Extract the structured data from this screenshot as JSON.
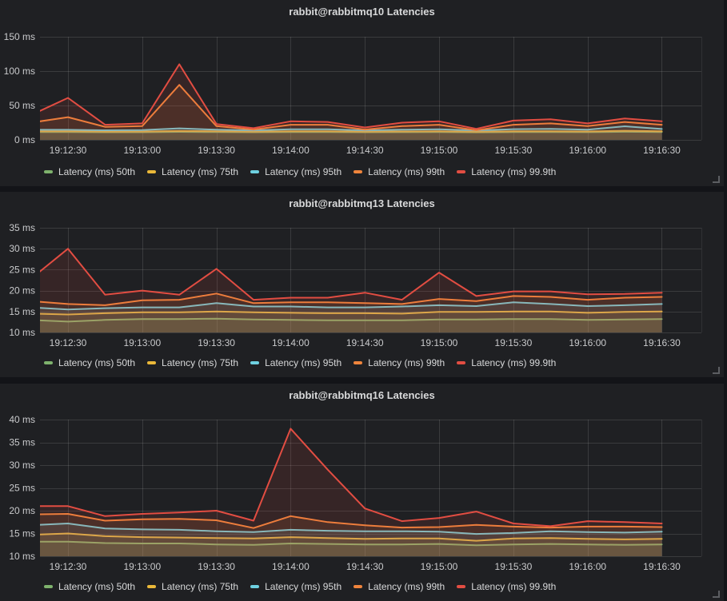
{
  "theme": {
    "page_bg": "#131418",
    "panel_bg": "#1f2023",
    "grid_color": "rgba(255,255,255,0.12)",
    "axis_text_color": "#c9cacc",
    "title_color": "#d8d9da",
    "legend_text_color": "#d8d9da",
    "resize_handle_color": "#5c5e62"
  },
  "chart_data": [
    {
      "type": "area",
      "title": "rabbit@rabbitmq10 Latencies",
      "y_unit": "ms",
      "grid": true,
      "legend_position": "bottom-left",
      "x_tick_labels": [
        "19:12:30",
        "19:13:00",
        "19:13:30",
        "19:14:00",
        "19:14:30",
        "19:15:00",
        "19:15:30",
        "19:16:00",
        "19:16:30"
      ],
      "x_tick_seconds": [
        30,
        60,
        90,
        120,
        150,
        180,
        210,
        240,
        270
      ],
      "x_seconds": [
        15,
        30,
        45,
        60,
        75,
        90,
        105,
        120,
        135,
        150,
        165,
        180,
        195,
        210,
        225,
        240,
        255,
        270
      ],
      "x_domain_seconds": [
        18.7,
        286
      ],
      "ylim": [
        0,
        150
      ],
      "y_tick_values": [
        0,
        50,
        100,
        150
      ],
      "y_tick_labels": [
        "0 ms",
        "50 ms",
        "100 ms",
        "150 ms"
      ],
      "series": [
        {
          "name": "Latency (ms) 50th",
          "percentile": "50th",
          "color": "#7EB26D",
          "values": [
            11.3,
            11.3,
            11.0,
            11.1,
            11.6,
            11.3,
            11.0,
            11.3,
            11.3,
            11.0,
            11.2,
            11.3,
            10.9,
            11.3,
            11.4,
            11.2,
            11.8,
            11.4
          ]
        },
        {
          "name": "Latency (ms) 75th",
          "percentile": "75th",
          "color": "#EAB839",
          "values": [
            12.4,
            12.4,
            12.0,
            12.1,
            12.9,
            12.4,
            11.9,
            12.4,
            12.4,
            11.9,
            12.2,
            12.4,
            11.8,
            12.4,
            12.6,
            12.2,
            13.3,
            12.5
          ]
        },
        {
          "name": "Latency (ms) 95th",
          "percentile": "95th",
          "color": "#6ED0E0",
          "values": [
            14.8,
            14.6,
            14.0,
            14.2,
            16.8,
            14.8,
            13.8,
            15.3,
            15.3,
            13.8,
            14.8,
            15.3,
            13.6,
            15.6,
            16.0,
            14.8,
            19.8,
            15.8
          ]
        },
        {
          "name": "Latency (ms) 99th",
          "percentile": "99th",
          "color": "#EF843C",
          "values": [
            25,
            33,
            19,
            20,
            80,
            20,
            15,
            22,
            22,
            15,
            20,
            22,
            14,
            22,
            24,
            20,
            26,
            22
          ]
        },
        {
          "name": "Latency (ms) 99.9th",
          "percentile": "99.9th",
          "color": "#E24D42",
          "values": [
            36,
            61,
            22,
            24,
            110,
            23,
            17,
            27,
            26,
            18,
            25,
            27,
            16,
            28,
            30,
            24,
            31,
            27
          ]
        }
      ]
    },
    {
      "type": "area",
      "title": "rabbit@rabbitmq13 Latencies",
      "y_unit": "ms",
      "grid": true,
      "legend_position": "bottom-left",
      "x_tick_labels": [
        "19:12:30",
        "19:13:00",
        "19:13:30",
        "19:14:00",
        "19:14:30",
        "19:15:00",
        "19:15:30",
        "19:16:00",
        "19:16:30"
      ],
      "x_tick_seconds": [
        30,
        60,
        90,
        120,
        150,
        180,
        210,
        240,
        270
      ],
      "x_seconds": [
        15,
        30,
        45,
        60,
        75,
        90,
        105,
        120,
        135,
        150,
        165,
        180,
        195,
        210,
        225,
        240,
        255,
        270
      ],
      "x_domain_seconds": [
        18.7,
        286
      ],
      "ylim": [
        10,
        35
      ],
      "y_tick_values": [
        10,
        15,
        20,
        25,
        30,
        35
      ],
      "y_tick_labels": [
        "10 ms",
        "15 ms",
        "20 ms",
        "25 ms",
        "30 ms",
        "35 ms"
      ],
      "series": [
        {
          "name": "Latency (ms) 50th",
          "percentile": "50th",
          "color": "#7EB26D",
          "values": [
            13.0,
            12.6,
            13.0,
            13.2,
            13.2,
            13.3,
            13.1,
            13.0,
            12.9,
            12.9,
            12.9,
            13.1,
            13.1,
            13.2,
            13.2,
            13.0,
            13.1,
            13.2
          ]
        },
        {
          "name": "Latency (ms) 75th",
          "percentile": "75th",
          "color": "#EAB839",
          "values": [
            14.5,
            14.3,
            14.6,
            14.8,
            14.8,
            15.0,
            14.8,
            14.7,
            14.6,
            14.6,
            14.5,
            14.9,
            14.9,
            15.0,
            15.0,
            14.7,
            14.9,
            15.0
          ]
        },
        {
          "name": "Latency (ms) 95th",
          "percentile": "95th",
          "color": "#6ED0E0",
          "values": [
            16.0,
            15.5,
            15.8,
            16.0,
            16.0,
            17.0,
            16.2,
            16.2,
            16.0,
            16.0,
            16.2,
            16.5,
            16.3,
            17.2,
            16.8,
            16.3,
            16.5,
            16.8
          ]
        },
        {
          "name": "Latency (ms) 99th",
          "percentile": "99th",
          "color": "#EF843C",
          "values": [
            17.5,
            16.8,
            16.5,
            17.7,
            17.8,
            19.3,
            17.0,
            17.2,
            17.2,
            17.0,
            16.8,
            18.0,
            17.5,
            18.7,
            18.5,
            17.8,
            18.3,
            18.5
          ]
        },
        {
          "name": "Latency (ms) 99.9th",
          "percentile": "99.9th",
          "color": "#E24D42",
          "values": [
            22.8,
            30.0,
            19.0,
            20.0,
            19.0,
            25.2,
            17.8,
            18.3,
            18.3,
            19.5,
            17.8,
            24.3,
            18.7,
            19.8,
            19.8,
            19.1,
            19.2,
            19.5
          ]
        }
      ]
    },
    {
      "type": "area",
      "title": "rabbit@rabbitmq16 Latencies",
      "y_unit": "ms",
      "grid": true,
      "legend_position": "bottom-left",
      "x_tick_labels": [
        "19:12:30",
        "19:13:00",
        "19:13:30",
        "19:14:00",
        "19:14:30",
        "19:15:00",
        "19:15:30",
        "19:16:00",
        "19:16:30"
      ],
      "x_tick_seconds": [
        30,
        60,
        90,
        120,
        150,
        180,
        210,
        240,
        270
      ],
      "x_seconds": [
        15,
        30,
        45,
        60,
        75,
        90,
        105,
        120,
        135,
        150,
        165,
        180,
        195,
        210,
        225,
        240,
        255,
        270
      ],
      "x_domain_seconds": [
        18.7,
        286
      ],
      "ylim": [
        10,
        40
      ],
      "y_tick_values": [
        10,
        15,
        20,
        25,
        30,
        35,
        40
      ],
      "y_tick_labels": [
        "10 ms",
        "15 ms",
        "20 ms",
        "25 ms",
        "30 ms",
        "35 ms",
        "40 ms"
      ],
      "series": [
        {
          "name": "Latency (ms) 50th",
          "percentile": "50th",
          "color": "#7EB26D",
          "values": [
            13.2,
            13.2,
            12.9,
            12.8,
            12.8,
            12.6,
            12.5,
            12.8,
            12.7,
            12.6,
            12.6,
            12.7,
            12.4,
            12.6,
            12.7,
            12.6,
            12.5,
            12.6
          ]
        },
        {
          "name": "Latency (ms) 75th",
          "percentile": "75th",
          "color": "#EAB839",
          "values": [
            14.7,
            15.0,
            14.4,
            14.2,
            14.1,
            14.0,
            13.9,
            14.2,
            14.0,
            13.8,
            13.9,
            13.9,
            13.4,
            13.9,
            14.0,
            13.8,
            13.7,
            13.8
          ]
        },
        {
          "name": "Latency (ms) 95th",
          "percentile": "95th",
          "color": "#6ED0E0",
          "values": [
            16.8,
            17.2,
            16.1,
            15.9,
            15.8,
            15.5,
            15.3,
            15.8,
            15.6,
            15.5,
            15.5,
            15.4,
            14.9,
            15.1,
            15.5,
            15.3,
            15.2,
            15.4
          ]
        },
        {
          "name": "Latency (ms) 99th",
          "percentile": "99th",
          "color": "#EF843C",
          "values": [
            19.2,
            19.3,
            17.8,
            18.1,
            18.2,
            17.9,
            16.2,
            18.8,
            17.5,
            16.8,
            16.3,
            16.4,
            16.9,
            16.5,
            16.3,
            16.5,
            16.5,
            16.4
          ]
        },
        {
          "name": "Latency (ms) 99.9th",
          "percentile": "99.9th",
          "color": "#E24D42",
          "values": [
            21.0,
            21.0,
            18.8,
            19.3,
            19.6,
            20.0,
            17.8,
            38.0,
            29.0,
            20.5,
            17.7,
            18.4,
            19.8,
            17.2,
            16.6,
            17.7,
            17.5,
            17.2
          ]
        }
      ]
    }
  ]
}
